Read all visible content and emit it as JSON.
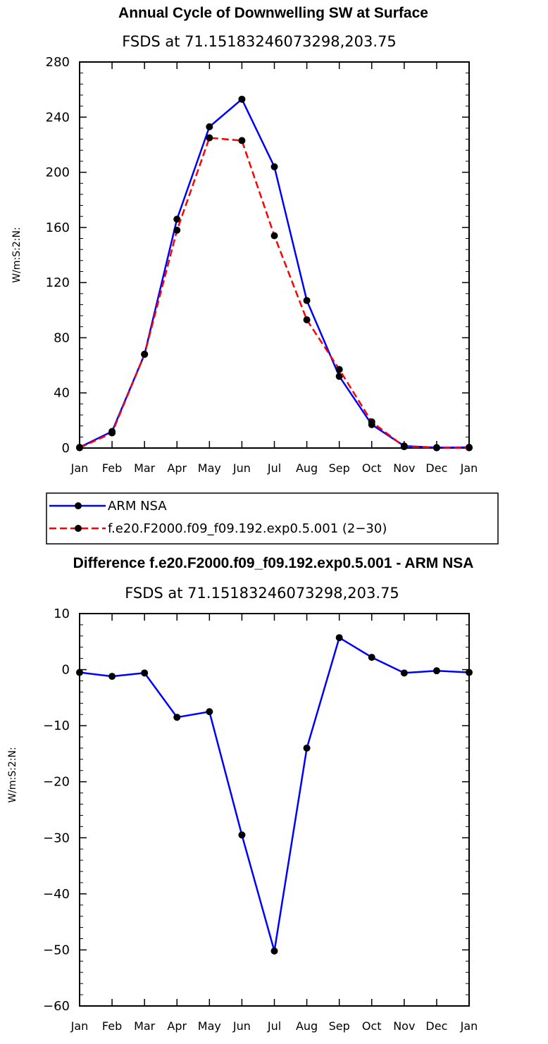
{
  "colors": {
    "series_a": "#0000ff",
    "series_b": "#ff0000",
    "marker": "#000000"
  },
  "chart_data": [
    {
      "type": "line",
      "title": "Annual Cycle of Downwelling SW at Surface",
      "subtitle": "FSDS at 71.15183246073298,203.75",
      "xlabel": "",
      "ylabel": "W/m:S:2:N:",
      "categories": [
        "Jan",
        "Feb",
        "Mar",
        "Apr",
        "May",
        "Jun",
        "Jul",
        "Aug",
        "Sep",
        "Oct",
        "Nov",
        "Dec",
        "Jan"
      ],
      "ylim": [
        0,
        280
      ],
      "yticks": [
        0,
        40,
        80,
        120,
        160,
        200,
        240,
        280
      ],
      "series": [
        {
          "name": "ARM NSA",
          "style": "solid",
          "values": [
            0.5,
            12,
            68,
            166,
            233,
            253,
            204,
            107,
            52,
            17,
            1.5,
            0.3,
            0.5
          ]
        },
        {
          "name": "f.e20.F2000.f09_f09.192.exp0.5.001 (2−30)",
          "style": "dashed",
          "values": [
            0.2,
            11,
            68,
            158,
            225,
            223,
            154,
            93,
            57,
            19,
            1,
            0.2,
            0.2
          ]
        }
      ]
    },
    {
      "type": "line",
      "title": "Difference f.e20.F2000.f09_f09.192.exp0.5.001 - ARM NSA",
      "subtitle": "FSDS at 71.15183246073298,203.75",
      "xlabel": "",
      "ylabel": "W/m:S:2:N:",
      "categories": [
        "Jan",
        "Feb",
        "Mar",
        "Apr",
        "May",
        "Jun",
        "Jul",
        "Aug",
        "Sep",
        "Oct",
        "Nov",
        "Dec",
        "Jan"
      ],
      "ylim": [
        -60,
        10
      ],
      "yticks": [
        -60,
        -50,
        -40,
        -30,
        -20,
        -10,
        0,
        10
      ],
      "series": [
        {
          "name": "Difference",
          "style": "solid",
          "values": [
            -0.5,
            -1.2,
            -0.6,
            -8.5,
            -7.5,
            -29.5,
            -50.2,
            -14,
            5.7,
            2.2,
            -0.6,
            -0.2,
            -0.5
          ]
        }
      ]
    }
  ]
}
